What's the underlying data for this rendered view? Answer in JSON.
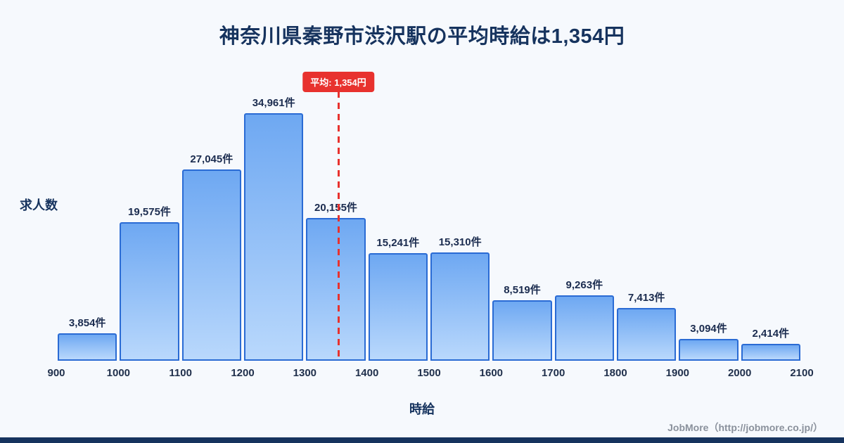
{
  "page": {
    "title": "神奈川県秦野市渋沢駅の平均時給は1,354円",
    "footer": "JobMore（http://jobmore.co.jp/）"
  },
  "chart_data": {
    "type": "bar",
    "title": "神奈川県秦野市渋沢駅の平均時給は1,354円",
    "xlabel": "時給",
    "ylabel": "求人数",
    "x_range": [
      900,
      2100
    ],
    "ylim": [
      0,
      35000
    ],
    "x_ticks": [
      900,
      1000,
      1100,
      1200,
      1300,
      1400,
      1500,
      1600,
      1700,
      1800,
      1900,
      2000,
      2100
    ],
    "categories": [
      "900-1000",
      "1000-1100",
      "1100-1200",
      "1200-1300",
      "1300-1400",
      "1400-1500",
      "1500-1600",
      "1600-1700",
      "1700-1800",
      "1800-1900",
      "1900-2000",
      "2000-2100"
    ],
    "values": [
      3854,
      19575,
      27045,
      34961,
      20155,
      15241,
      15310,
      8519,
      9263,
      7413,
      3094,
      2414
    ],
    "value_labels": [
      "3,854件",
      "19,575件",
      "27,045件",
      "34,961件",
      "20,155件",
      "15,241件",
      "15,310件",
      "8,519件",
      "9,263件",
      "7,413件",
      "3,094件",
      "2,414件"
    ],
    "average": {
      "value": 1354,
      "label": "平均: 1,354円"
    },
    "legend": "none",
    "grid": false,
    "colors": {
      "background": "#f6f9fd",
      "bar_border": "#2a6bd4",
      "bar_gradient_top": "#6ea8f2",
      "bar_gradient_bottom": "#b9d8fc",
      "average_accent": "#e8322e",
      "text_navy": "#16335e",
      "footer_gray": "#8a919c"
    }
  }
}
